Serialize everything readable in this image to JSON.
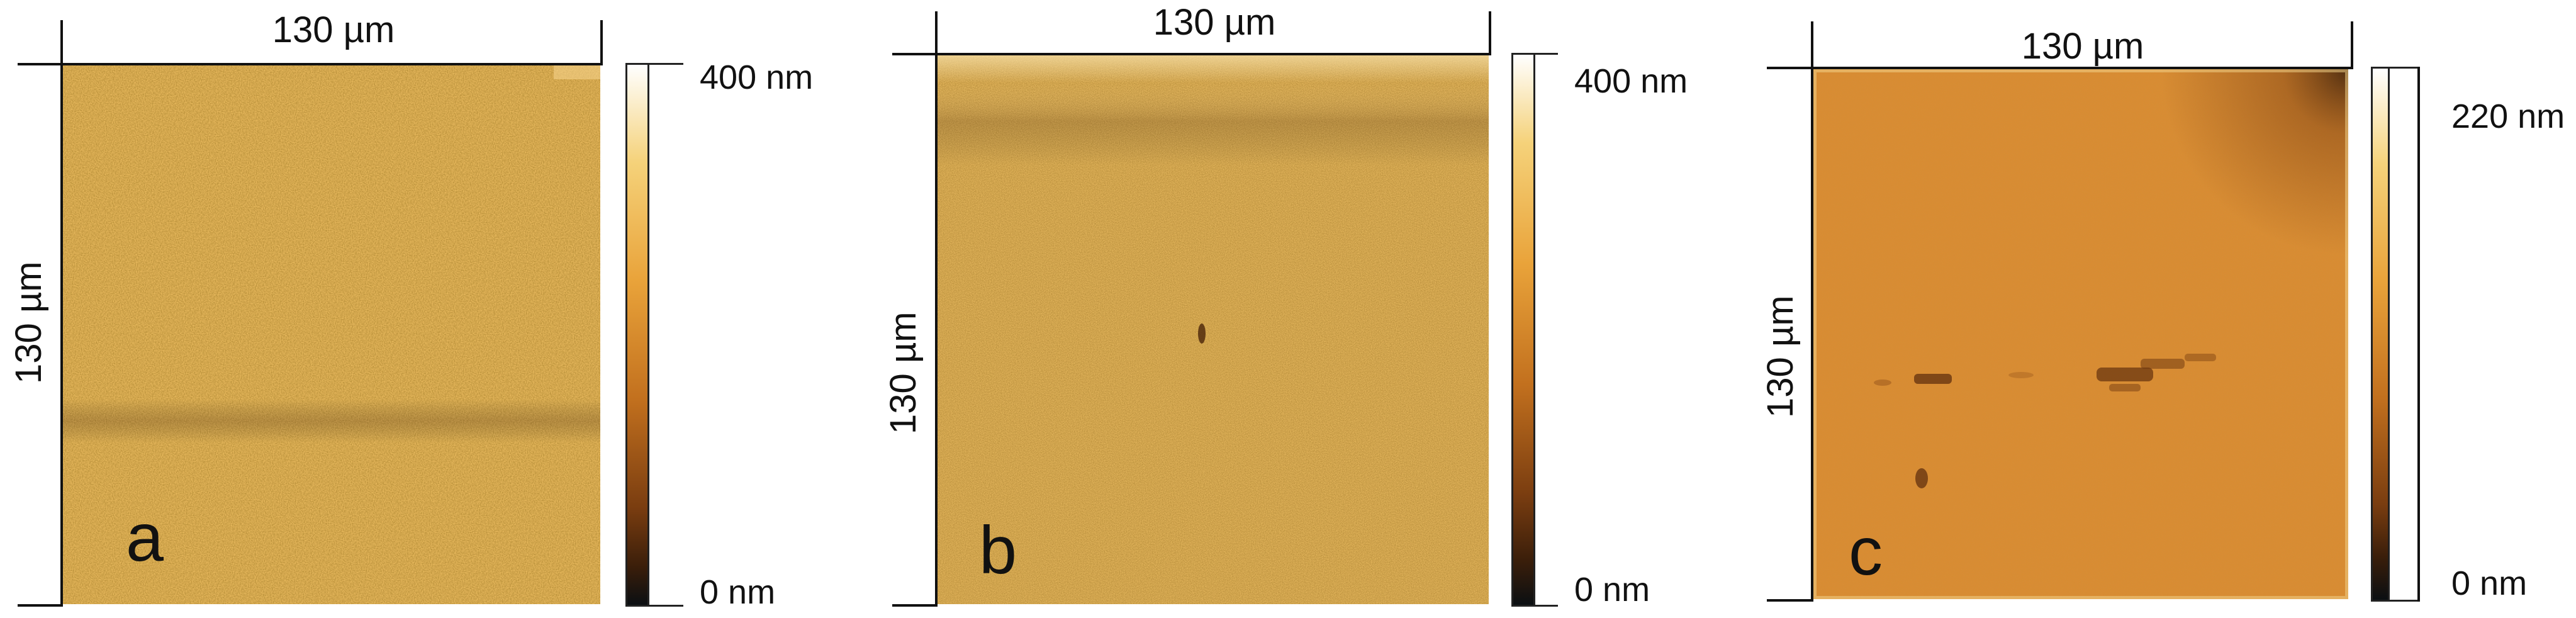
{
  "panels": [
    {
      "letter": "a",
      "width_label": "130 µm",
      "height_label": "130 µm",
      "colorbar": {
        "max_label": "400 nm",
        "min_label": "0 nm"
      }
    },
    {
      "letter": "b",
      "width_label": "130 µm",
      "height_label": "130 µm",
      "colorbar": {
        "max_label": "400 nm",
        "min_label": "0 nm"
      }
    },
    {
      "letter": "c",
      "width_label": "130 µm",
      "height_label": "130 µm",
      "colorbar": {
        "max_label": "220 nm",
        "min_label": "0 nm"
      }
    }
  ],
  "colors": {
    "colormap": [
      "#0b0f12",
      "#3a1e0a",
      "#7a3d10",
      "#c2701e",
      "#e9a33a",
      "#f5d27a",
      "#ffffff"
    ],
    "surface_c": "#d98a2e"
  }
}
